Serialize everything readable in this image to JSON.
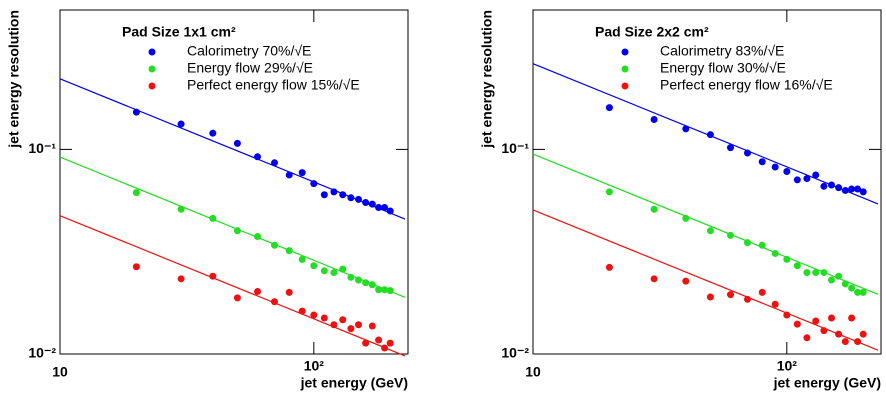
{
  "chart_data": [
    {
      "type": "scatter",
      "title": "Pad Size 1x1 cm²",
      "xlabel": "jet energy (GeV)",
      "ylabel": "jet energy resolution",
      "log_x": true,
      "log_y": true,
      "xlim": [
        10,
        235
      ],
      "ylim": [
        0.01,
        0.48
      ],
      "xticks": [
        10,
        {
          "value": 100,
          "label": "10²"
        }
      ],
      "yticks": [
        {
          "value": 0.01,
          "label": "10⁻²"
        },
        {
          "value": 0.1,
          "label": "10⁻¹"
        }
      ],
      "x": [
        20,
        30,
        40,
        50,
        60,
        70,
        80,
        90,
        100,
        110,
        120,
        130,
        140,
        150,
        160,
        170,
        180,
        190,
        200
      ],
      "series": [
        {
          "name": "Calorimetry 70%/√E",
          "color": "#0000ee",
          "fit": 70,
          "values": [
            0.152,
            0.133,
            0.12,
            0.107,
            0.092,
            0.086,
            0.075,
            0.077,
            0.068,
            0.06,
            0.062,
            0.06,
            0.058,
            0.057,
            0.055,
            0.054,
            0.052,
            0.052,
            0.05
          ]
        },
        {
          "name": "Energy flow 29%/√E",
          "color": "#22dd22",
          "fit": 29,
          "values": [
            0.0615,
            0.051,
            0.046,
            0.04,
            0.0375,
            0.034,
            0.032,
            0.029,
            0.027,
            0.0255,
            0.025,
            0.026,
            0.0237,
            0.023,
            0.0223,
            0.0218,
            0.0206,
            0.0206,
            0.0204
          ]
        },
        {
          "name": "Perfect energy flow 15%/√E",
          "color": "#ee1111",
          "fit": 15,
          "values": [
            0.0267,
            0.0233,
            0.024,
            0.0188,
            0.0202,
            0.018,
            0.02,
            0.0162,
            0.0155,
            0.015,
            0.0139,
            0.0147,
            0.0133,
            0.0139,
            0.0113,
            0.0137,
            0.0117,
            0.0107,
            0.0113
          ]
        }
      ]
    },
    {
      "type": "scatter",
      "title": "Pad Size 2x2 cm²",
      "xlabel": "jet energy (GeV)",
      "ylabel": "jet energy resolution",
      "log_x": true,
      "log_y": true,
      "xlim": [
        10,
        235
      ],
      "ylim": [
        0.01,
        0.48
      ],
      "xticks": [
        10,
        {
          "value": 100,
          "label": "10²"
        }
      ],
      "yticks": [
        {
          "value": 0.01,
          "label": "10⁻²"
        },
        {
          "value": 0.1,
          "label": "10⁻¹"
        }
      ],
      "x": [
        20,
        30,
        40,
        50,
        60,
        70,
        80,
        90,
        100,
        110,
        120,
        130,
        140,
        150,
        160,
        170,
        180,
        190,
        200
      ],
      "series": [
        {
          "name": "Calorimetry 83%/√E",
          "color": "#0000ee",
          "fit": 83,
          "values": [
            0.16,
            0.14,
            0.126,
            0.118,
            0.102,
            0.096,
            0.087,
            0.082,
            0.078,
            0.071,
            0.072,
            0.075,
            0.066,
            0.067,
            0.065,
            0.063,
            0.064,
            0.064,
            0.062
          ]
        },
        {
          "name": "Energy flow 30%/√E",
          "color": "#22dd22",
          "fit": 30,
          "values": [
            0.062,
            0.051,
            0.046,
            0.04,
            0.038,
            0.035,
            0.034,
            0.031,
            0.029,
            0.027,
            0.025,
            0.025,
            0.025,
            0.023,
            0.024,
            0.022,
            0.021,
            0.02,
            0.02
          ]
        },
        {
          "name": "Perfect energy flow 16%/√E",
          "color": "#ee1111",
          "fit": 16,
          "values": [
            0.0265,
            0.0233,
            0.0227,
            0.019,
            0.0195,
            0.0185,
            0.02,
            0.0175,
            0.0155,
            0.014,
            0.012,
            0.0145,
            0.013,
            0.015,
            0.0125,
            0.0115,
            0.015,
            0.0115,
            0.0125
          ]
        }
      ]
    }
  ]
}
